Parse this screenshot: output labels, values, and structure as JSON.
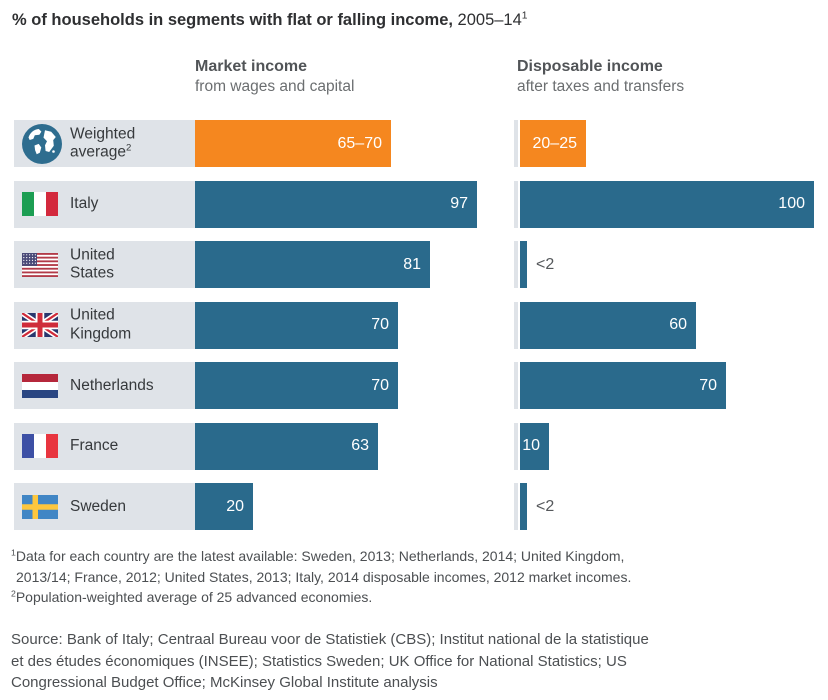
{
  "title": {
    "bold": "% of households in segments with flat or falling income,",
    "regular": " 2005–14",
    "sup": "1"
  },
  "columns": {
    "market": {
      "label": "Market income",
      "sublabel": "from wages and capital"
    },
    "disposable": {
      "label": "Disposable income",
      "sublabel": "after taxes and transfers"
    }
  },
  "colors": {
    "bar_teal": "#2a6a8c",
    "bar_orange": "#f5871f",
    "row_label_bg": "#dfe3e8",
    "value_text": "#ffffff",
    "outside_value_text": "#55585b"
  },
  "chart_data": {
    "type": "bar",
    "orientation": "horizontal",
    "title": "% of households in segments with flat or falling income, 2005–14",
    "xlim": [
      0,
      100
    ],
    "unit": "% of households",
    "legend_position": "none",
    "grid": false,
    "categories": [
      "Weighted average",
      "Italy",
      "United States",
      "United Kingdom",
      "Netherlands",
      "France",
      "Sweden"
    ],
    "series": [
      {
        "name": "Market income (from wages and capital)",
        "values": [
          67.5,
          97,
          81,
          70,
          70,
          63,
          20
        ],
        "labels": [
          "65–70",
          "97",
          "81",
          "70",
          "70",
          "63",
          "20"
        ]
      },
      {
        "name": "Disposable income (after taxes and transfers)",
        "values": [
          22.5,
          100,
          2,
          60,
          70,
          10,
          2
        ],
        "labels": [
          "20–25",
          "100",
          "<2",
          "60",
          "70",
          "10",
          "<2"
        ]
      }
    ],
    "rows": [
      {
        "label_lines": [
          "Weighted",
          "average"
        ],
        "label_sup": "2",
        "icon": "globe-icon",
        "highlight": true,
        "market": {
          "value": 67.5,
          "label": "65–70"
        },
        "disposable": {
          "value": 22.5,
          "label": "20–25",
          "label_outside": false
        }
      },
      {
        "label_lines": [
          "Italy"
        ],
        "icon": "flag-italy-icon",
        "highlight": false,
        "market": {
          "value": 97,
          "label": "97"
        },
        "disposable": {
          "value": 100,
          "label": "100",
          "label_outside": false
        }
      },
      {
        "label_lines": [
          "United",
          "States"
        ],
        "icon": "flag-us-icon",
        "highlight": false,
        "market": {
          "value": 81,
          "label": "81"
        },
        "disposable": {
          "value": 2,
          "label": "<2",
          "label_outside": true
        }
      },
      {
        "label_lines": [
          "United",
          "Kingdom"
        ],
        "icon": "flag-uk-icon",
        "highlight": false,
        "market": {
          "value": 70,
          "label": "70"
        },
        "disposable": {
          "value": 60,
          "label": "60",
          "label_outside": false
        }
      },
      {
        "label_lines": [
          "Netherlands"
        ],
        "icon": "flag-netherlands-icon",
        "highlight": false,
        "market": {
          "value": 70,
          "label": "70"
        },
        "disposable": {
          "value": 70,
          "label": "70",
          "label_outside": false
        }
      },
      {
        "label_lines": [
          "France"
        ],
        "icon": "flag-france-icon",
        "highlight": false,
        "market": {
          "value": 63,
          "label": "63"
        },
        "disposable": {
          "value": 10,
          "label": "10",
          "label_outside": false
        }
      },
      {
        "label_lines": [
          "Sweden"
        ],
        "icon": "flag-sweden-icon",
        "highlight": false,
        "market": {
          "value": 20,
          "label": "20"
        },
        "disposable": {
          "value": 2,
          "label": "<2",
          "label_outside": true
        }
      }
    ]
  },
  "footnotes": {
    "lines": [
      {
        "sup": "1",
        "text": "Data for each country are the latest available: Sweden, 2013; Netherlands, 2014; United Kingdom,"
      },
      {
        "sup": "",
        "text": "2013/14; France, 2012; United States, 2013; Italy, 2014 disposable incomes, 2012 market incomes."
      },
      {
        "sup": "2",
        "text": "Population-weighted average of 25 advanced economies."
      }
    ]
  },
  "source": {
    "lines": [
      "Source: Bank of Italy; Centraal Bureau voor de Statistiek (CBS); Institut national de la statistique",
      "et des études économiques (INSEE); Statistics Sweden; UK Office for National Statistics; US",
      "Congressional Budget Office; McKinsey Global Institute analysis"
    ]
  }
}
